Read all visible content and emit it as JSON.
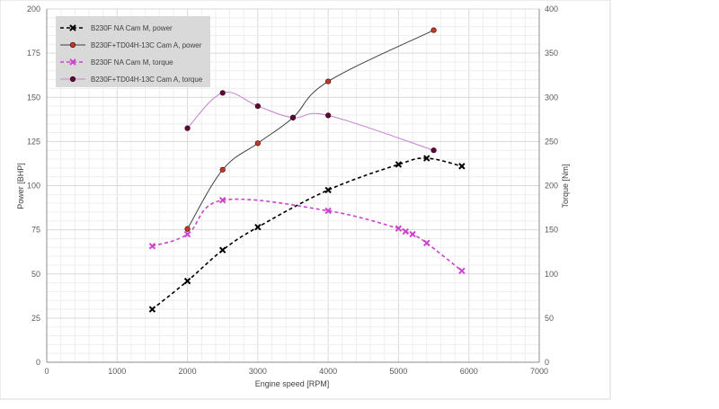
{
  "chart_data": {
    "type": "line",
    "title": "",
    "xlabel": "Engine speed [RPM]",
    "ylabel": "Power [BHP]",
    "y2label": "Torque [Nm]",
    "xlim": [
      0,
      7000
    ],
    "ylim": [
      0,
      200
    ],
    "y2lim": [
      0,
      400
    ],
    "x_ticks": [
      "0",
      "1000",
      "2000",
      "3000",
      "4000",
      "5000",
      "6000",
      "7000"
    ],
    "y_ticks": [
      "0",
      "25",
      "50",
      "75",
      "100",
      "125",
      "150",
      "175",
      "200"
    ],
    "y2_ticks": [
      "0",
      "50",
      "100",
      "150",
      "200",
      "250",
      "300",
      "350",
      "400"
    ],
    "grid": true,
    "legend_position": "top-left",
    "series": [
      {
        "name": "B230F NA Cam M, power",
        "axis": "left",
        "color": "#000000",
        "dashed": true,
        "marker": "x",
        "x": [
          1500,
          2000,
          2500,
          3000,
          4000,
          5000,
          5400,
          5900
        ],
        "y": [
          30,
          46,
          63.5,
          76.5,
          97.5,
          112,
          115.5,
          111
        ]
      },
      {
        "name": "B230F+TD04H-13C Cam A, power",
        "axis": "left",
        "color": "#404040",
        "marker_color": "#c0392b",
        "dashed": false,
        "marker": "circle",
        "x": [
          2000,
          2500,
          3000,
          3500,
          4000,
          5500
        ],
        "y": [
          75.5,
          109,
          124,
          138.5,
          159,
          188
        ]
      },
      {
        "name": "B230F NA Cam M, torque",
        "axis": "right",
        "color": "#cc44cc",
        "dashed": true,
        "marker": "x",
        "x": [
          1500,
          2000,
          2500,
          4000,
          5000,
          5100,
          5200,
          5400,
          5900
        ],
        "y": [
          131.5,
          145,
          183.5,
          171.5,
          151.5,
          148,
          145,
          135,
          103.5
        ]
      },
      {
        "name": "B230F+TD04H-13C Cam A, torque",
        "axis": "right",
        "color": "#c77fd6",
        "marker_color": "#5a0a3a",
        "dashed": false,
        "marker": "circle",
        "x": [
          2000,
          2500,
          3000,
          3500,
          4000,
          5500
        ],
        "y": [
          265,
          305,
          290,
          277,
          279.5,
          240
        ]
      }
    ]
  }
}
